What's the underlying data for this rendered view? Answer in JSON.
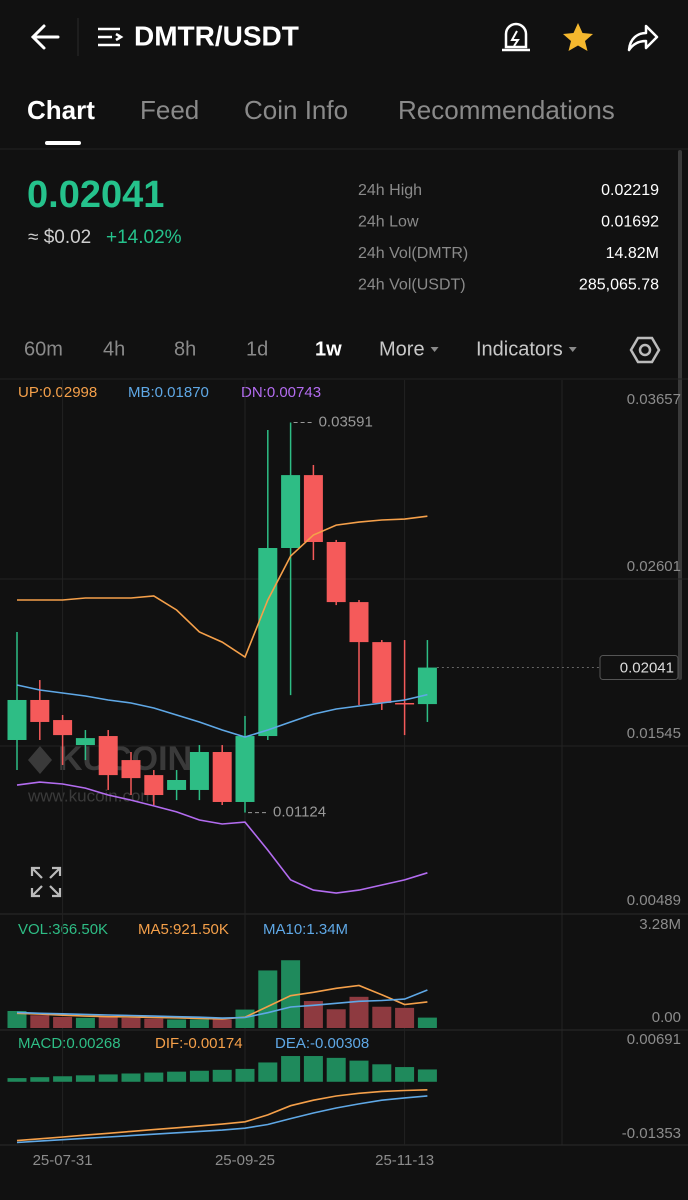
{
  "header": {
    "title": "DMTR/USDT"
  },
  "tabs": [
    "Chart",
    "Feed",
    "Coin Info",
    "Recommendations"
  ],
  "ticker": {
    "price": "0.02041",
    "usd": "≈ $0.02",
    "change": "+14.02%"
  },
  "stats": [
    {
      "label": "24h High",
      "value": "0.02219"
    },
    {
      "label": "24h Low",
      "value": "0.01692"
    },
    {
      "label": "24h Vol(DMTR)",
      "value": "14.82M"
    },
    {
      "label": "24h Vol(USDT)",
      "value": "285,065.78"
    }
  ],
  "intervals": [
    "60m",
    "4h",
    "8h",
    "1d",
    "1w",
    "More",
    "Indicators"
  ],
  "chart": {
    "legend": [
      "UP:0.02998",
      "MB:0.01870",
      "DN:0.00743"
    ],
    "categories": [
      null,
      null,
      "25-07-31",
      null,
      null,
      null,
      null,
      null,
      null,
      null,
      "25-09-25",
      null,
      null,
      null,
      null,
      null,
      null,
      "25-11-13",
      null
    ],
    "ylim": [
      0.00489,
      0.03657
    ],
    "yticks": [
      0.03657,
      0.02601,
      0.01545,
      0.00489
    ],
    "candles": {
      "open": [
        0.01583,
        0.01836,
        0.01709,
        0.01551,
        0.01608,
        0.01456,
        0.01361,
        0.01267,
        0.01267,
        0.01507,
        0.01191,
        0.01608,
        0.02797,
        0.03258,
        0.02835,
        0.02455,
        0.02202,
        0.01817,
        0.0181
      ],
      "high": [
        0.02266,
        0.01962,
        0.01741,
        0.01646,
        0.01646,
        0.01507,
        0.01393,
        0.01393,
        0.01551,
        0.01551,
        0.01735,
        0.03543,
        0.03591,
        0.03322,
        0.02848,
        0.02468,
        0.02215,
        0.02215,
        0.02215
      ],
      "low": [
        0.01393,
        0.01583,
        0.01425,
        0.01456,
        0.01267,
        0.01235,
        0.01172,
        0.01203,
        0.01203,
        0.01172,
        0.01124,
        0.01583,
        0.01867,
        0.02721,
        0.02436,
        0.01804,
        0.01773,
        0.01614,
        0.01697
      ],
      "close": [
        0.01836,
        0.01697,
        0.01614,
        0.01595,
        0.01361,
        0.01342,
        0.01235,
        0.0133,
        0.01507,
        0.01191,
        0.01608,
        0.02797,
        0.03258,
        0.02835,
        0.02455,
        0.02202,
        0.01817,
        0.0181,
        0.02041
      ]
    },
    "bands": [
      {
        "color": "#f5a04a",
        "values": [
          0.02468,
          0.02468,
          0.02468,
          0.02481,
          0.02481,
          0.02481,
          0.02494,
          0.02405,
          0.02266,
          0.02202,
          0.02108,
          0.02468,
          0.02746,
          0.02879,
          0.02942,
          0.02961,
          0.02974,
          0.0298,
          0.02998
        ]
      },
      {
        "color": "#5fa8e6",
        "values": [
          0.01931,
          0.01899,
          0.0188,
          0.01861,
          0.01836,
          0.01817,
          0.01785,
          0.01741,
          0.01697,
          0.01646,
          0.01602,
          0.01646,
          0.01697,
          0.01747,
          0.01779,
          0.01798,
          0.01817,
          0.01836,
          0.0187
        ]
      },
      {
        "color": "#b36cf0",
        "values": [
          0.01298,
          0.01317,
          0.01305,
          0.01279,
          0.01235,
          0.01203,
          0.01166,
          0.01128,
          0.01077,
          0.01052,
          0.01064,
          0.00887,
          0.00698,
          0.00634,
          0.00615,
          0.00634,
          0.00666,
          0.00698,
          0.00743
        ]
      }
    ],
    "volume": {
      "legend": [
        "VOL:366.50K",
        "MA5:921.50K",
        "MA10:1.34M"
      ],
      "ylim": [
        0,
        3280000
      ],
      "yticks": [
        {
          "value": 3280000,
          "label": "3.28M"
        },
        {
          "value": 0,
          "label": "0.00"
        }
      ],
      "values": [
        600000,
        450000,
        390000,
        360000,
        390000,
        360000,
        330000,
        300000,
        300000,
        300000,
        650000,
        2030000,
        2390000,
        950000,
        660000,
        1100000,
        750000,
        710000,
        366500
      ],
      "lines": [
        {
          "color": "#f5a04a",
          "values": [
            520000,
            490000,
            450000,
            420000,
            400000,
            390000,
            370000,
            360000,
            340000,
            320000,
            380000,
            760000,
            1140000,
            1260000,
            1400000,
            1500000,
            1170000,
            830000,
            921500
          ]
        },
        {
          "color": "#5fa8e6",
          "values": [
            550000,
            520000,
            500000,
            480000,
            460000,
            440000,
            420000,
            400000,
            380000,
            350000,
            370000,
            540000,
            740000,
            800000,
            870000,
            940000,
            970000,
            1020000,
            1340000
          ]
        }
      ]
    },
    "macd": {
      "legend": [
        "MACD:0.00268",
        "DIF:-0.00174",
        "DEA:-0.00308"
      ],
      "ylim": [
        -0.01353,
        0.00691
      ],
      "yticks": [
        0.00691,
        -0.01353
      ],
      "values": [
        0.0008,
        0.001,
        0.0012,
        0.0014,
        0.0016,
        0.0018,
        0.002,
        0.0022,
        0.0024,
        0.0026,
        0.0028,
        0.0042,
        0.0056,
        0.0056,
        0.0052,
        0.0046,
        0.0038,
        0.0032,
        0.00268
      ],
      "lines": [
        {
          "color": "#f5a04a",
          "values": [
            -0.0128,
            -0.0124,
            -0.012,
            -0.0116,
            -0.0112,
            -0.0108,
            -0.0104,
            -0.01,
            -0.0096,
            -0.0092,
            -0.0087,
            -0.0072,
            -0.0052,
            -0.004,
            -0.0031,
            -0.0025,
            -0.0021,
            -0.0019,
            -0.00174
          ]
        },
        {
          "color": "#5fa8e6",
          "values": [
            -0.0132,
            -0.0129,
            -0.0126,
            -0.0123,
            -0.012,
            -0.0117,
            -0.0114,
            -0.0111,
            -0.0108,
            -0.0105,
            -0.0101,
            -0.0093,
            -0.008,
            -0.0068,
            -0.0057,
            -0.0048,
            -0.004,
            -0.0035,
            -0.00308
          ]
        }
      ]
    }
  },
  "watermark": {
    "logo": "KUCOIN",
    "url": "www.kucoin.com"
  }
}
